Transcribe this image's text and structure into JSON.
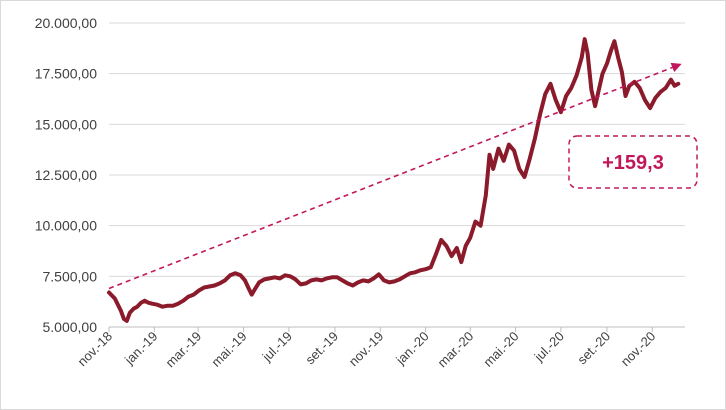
{
  "chart_data": {
    "type": "line",
    "title": "",
    "xlabel": "",
    "ylabel": "",
    "ylim": [
      5000,
      20000
    ],
    "yticks": [
      "20.000,00",
      "17.500,00",
      "15.000,00",
      "12.500,00",
      "10.000,00",
      "7.500,00",
      "5.000,00"
    ],
    "ytick_values": [
      20000,
      17500,
      15000,
      12500,
      10000,
      7500,
      5000
    ],
    "xlim": [
      "2018-11-01",
      "2020-12-15"
    ],
    "xticks": [
      {
        "label": "nov.-18",
        "date": "2018-11-01"
      },
      {
        "label": "jan.-19",
        "date": "2019-01-01"
      },
      {
        "label": "mar.-19",
        "date": "2019-03-01"
      },
      {
        "label": "mai.-19",
        "date": "2019-05-01"
      },
      {
        "label": "jul.-19",
        "date": "2019-07-01"
      },
      {
        "label": "set.-19",
        "date": "2019-09-01"
      },
      {
        "label": "nov.-19",
        "date": "2019-11-01"
      },
      {
        "label": "jan.-20",
        "date": "2020-01-01"
      },
      {
        "label": "mar.-20",
        "date": "2020-03-01"
      },
      {
        "label": "mai.-20",
        "date": "2020-05-01"
      },
      {
        "label": "jul.-20",
        "date": "2020-07-01"
      },
      {
        "label": "set.-20",
        "date": "2020-09-01"
      },
      {
        "label": "nov.-20",
        "date": "2020-11-01"
      }
    ],
    "grid": true,
    "series": [
      {
        "color": "#8b1a2b",
        "points": [
          [
            "2018-11-01",
            6700
          ],
          [
            "2018-11-05",
            6550
          ],
          [
            "2018-11-09",
            6400
          ],
          [
            "2018-11-13",
            6100
          ],
          [
            "2018-11-17",
            5800
          ],
          [
            "2018-11-21",
            5400
          ],
          [
            "2018-11-25",
            5300
          ],
          [
            "2018-11-29",
            5700
          ],
          [
            "2018-12-04",
            5900
          ],
          [
            "2018-12-09",
            6000
          ],
          [
            "2018-12-14",
            6200
          ],
          [
            "2018-12-19",
            6300
          ],
          [
            "2018-12-24",
            6200
          ],
          [
            "2018-12-29",
            6150
          ],
          [
            "2019-01-05",
            6100
          ],
          [
            "2019-01-12",
            6000
          ],
          [
            "2019-01-19",
            6050
          ],
          [
            "2019-01-26",
            6050
          ],
          [
            "2019-02-02",
            6150
          ],
          [
            "2019-02-09",
            6300
          ],
          [
            "2019-02-16",
            6500
          ],
          [
            "2019-02-23",
            6600
          ],
          [
            "2019-03-02",
            6800
          ],
          [
            "2019-03-09",
            6950
          ],
          [
            "2019-03-16",
            7000
          ],
          [
            "2019-03-23",
            7050
          ],
          [
            "2019-03-30",
            7150
          ],
          [
            "2019-04-06",
            7300
          ],
          [
            "2019-04-13",
            7550
          ],
          [
            "2019-04-20",
            7650
          ],
          [
            "2019-04-27",
            7550
          ],
          [
            "2019-05-03",
            7300
          ],
          [
            "2019-05-08",
            6900
          ],
          [
            "2019-05-12",
            6600
          ],
          [
            "2019-05-16",
            6850
          ],
          [
            "2019-05-22",
            7200
          ],
          [
            "2019-05-29",
            7350
          ],
          [
            "2019-06-05",
            7400
          ],
          [
            "2019-06-12",
            7450
          ],
          [
            "2019-06-19",
            7400
          ],
          [
            "2019-06-26",
            7550
          ],
          [
            "2019-07-03",
            7500
          ],
          [
            "2019-07-10",
            7350
          ],
          [
            "2019-07-17",
            7100
          ],
          [
            "2019-07-24",
            7150
          ],
          [
            "2019-07-31",
            7300
          ],
          [
            "2019-08-07",
            7350
          ],
          [
            "2019-08-14",
            7300
          ],
          [
            "2019-08-21",
            7400
          ],
          [
            "2019-08-28",
            7450
          ],
          [
            "2019-09-04",
            7450
          ],
          [
            "2019-09-11",
            7300
          ],
          [
            "2019-09-18",
            7150
          ],
          [
            "2019-09-25",
            7050
          ],
          [
            "2019-10-02",
            7200
          ],
          [
            "2019-10-09",
            7300
          ],
          [
            "2019-10-16",
            7250
          ],
          [
            "2019-10-23",
            7400
          ],
          [
            "2019-10-30",
            7600
          ],
          [
            "2019-11-06",
            7300
          ],
          [
            "2019-11-13",
            7200
          ],
          [
            "2019-11-20",
            7250
          ],
          [
            "2019-11-27",
            7350
          ],
          [
            "2019-12-04",
            7500
          ],
          [
            "2019-12-11",
            7650
          ],
          [
            "2019-12-18",
            7700
          ],
          [
            "2019-12-25",
            7800
          ],
          [
            "2020-01-01",
            7850
          ],
          [
            "2020-01-08",
            7950
          ],
          [
            "2020-01-15",
            8600
          ],
          [
            "2020-01-22",
            9300
          ],
          [
            "2020-01-29",
            9000
          ],
          [
            "2020-02-05",
            8500
          ],
          [
            "2020-02-12",
            8900
          ],
          [
            "2020-02-18",
            8200
          ],
          [
            "2020-02-24",
            9000
          ],
          [
            "2020-03-01",
            9400
          ],
          [
            "2020-03-08",
            10200
          ],
          [
            "2020-03-15",
            10000
          ],
          [
            "2020-03-22",
            11500
          ],
          [
            "2020-03-27",
            13500
          ],
          [
            "2020-04-01",
            12800
          ],
          [
            "2020-04-08",
            13800
          ],
          [
            "2020-04-15",
            13200
          ],
          [
            "2020-04-22",
            14000
          ],
          [
            "2020-04-29",
            13700
          ],
          [
            "2020-05-06",
            12800
          ],
          [
            "2020-05-13",
            12400
          ],
          [
            "2020-05-20",
            13300
          ],
          [
            "2020-05-27",
            14300
          ],
          [
            "2020-06-03",
            15500
          ],
          [
            "2020-06-10",
            16500
          ],
          [
            "2020-06-17",
            17000
          ],
          [
            "2020-06-24",
            16200
          ],
          [
            "2020-07-01",
            15600
          ],
          [
            "2020-07-08",
            16400
          ],
          [
            "2020-07-15",
            16800
          ],
          [
            "2020-07-22",
            17400
          ],
          [
            "2020-07-29",
            18300
          ],
          [
            "2020-08-02",
            19200
          ],
          [
            "2020-08-06",
            18500
          ],
          [
            "2020-08-11",
            16700
          ],
          [
            "2020-08-16",
            15900
          ],
          [
            "2020-08-21",
            16700
          ],
          [
            "2020-08-26",
            17500
          ],
          [
            "2020-09-01",
            18000
          ],
          [
            "2020-09-06",
            18600
          ],
          [
            "2020-09-11",
            19100
          ],
          [
            "2020-09-16",
            18300
          ],
          [
            "2020-09-21",
            17600
          ],
          [
            "2020-09-26",
            16400
          ],
          [
            "2020-10-01",
            16900
          ],
          [
            "2020-10-08",
            17100
          ],
          [
            "2020-10-15",
            16800
          ],
          [
            "2020-10-22",
            16200
          ],
          [
            "2020-10-29",
            15800
          ],
          [
            "2020-11-05",
            16300
          ],
          [
            "2020-11-12",
            16600
          ],
          [
            "2020-11-19",
            16800
          ],
          [
            "2020-11-26",
            17200
          ],
          [
            "2020-12-01",
            16900
          ],
          [
            "2020-12-06",
            17000
          ]
        ]
      }
    ],
    "trendline": {
      "style": "dashed",
      "color": "#c2185b",
      "arrow": true,
      "start": [
        "2018-11-01",
        6900
      ],
      "end": [
        "2020-12-08",
        17950
      ]
    },
    "annotation": {
      "text": "+159,3",
      "color": "#c2185b",
      "boxed": true,
      "border_style": "dashed"
    }
  }
}
